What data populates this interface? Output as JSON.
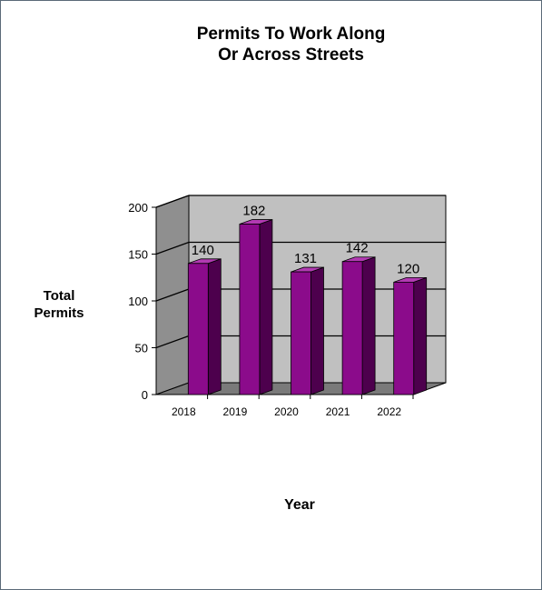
{
  "chart_data": {
    "type": "bar",
    "title_lines": [
      "Permits To Work Along",
      "Or Across Streets"
    ],
    "ylabel_lines": [
      "Total",
      "Permits"
    ],
    "xlabel": "Year",
    "categories": [
      "2018",
      "2019",
      "2020",
      "2021",
      "2022"
    ],
    "values": [
      140,
      182,
      131,
      142,
      120
    ],
    "data_labels": [
      "140",
      "182",
      "131",
      "142",
      "120"
    ],
    "ylim": [
      0,
      200
    ],
    "yticks": [
      0,
      50,
      100,
      150,
      200
    ],
    "ytick_labels": [
      "0",
      "50",
      "100",
      "150",
      "200"
    ],
    "grid": true,
    "legend": "none",
    "three_d": true
  },
  "colors": {
    "bar_front": "#8b0b8b",
    "bar_side": "#4d004d",
    "bar_top": "#b23ab2",
    "wall": "#c0c0c0",
    "side_wall": "#8f8f8f",
    "floor": "#7a7a7a",
    "gridline": "#000000"
  }
}
